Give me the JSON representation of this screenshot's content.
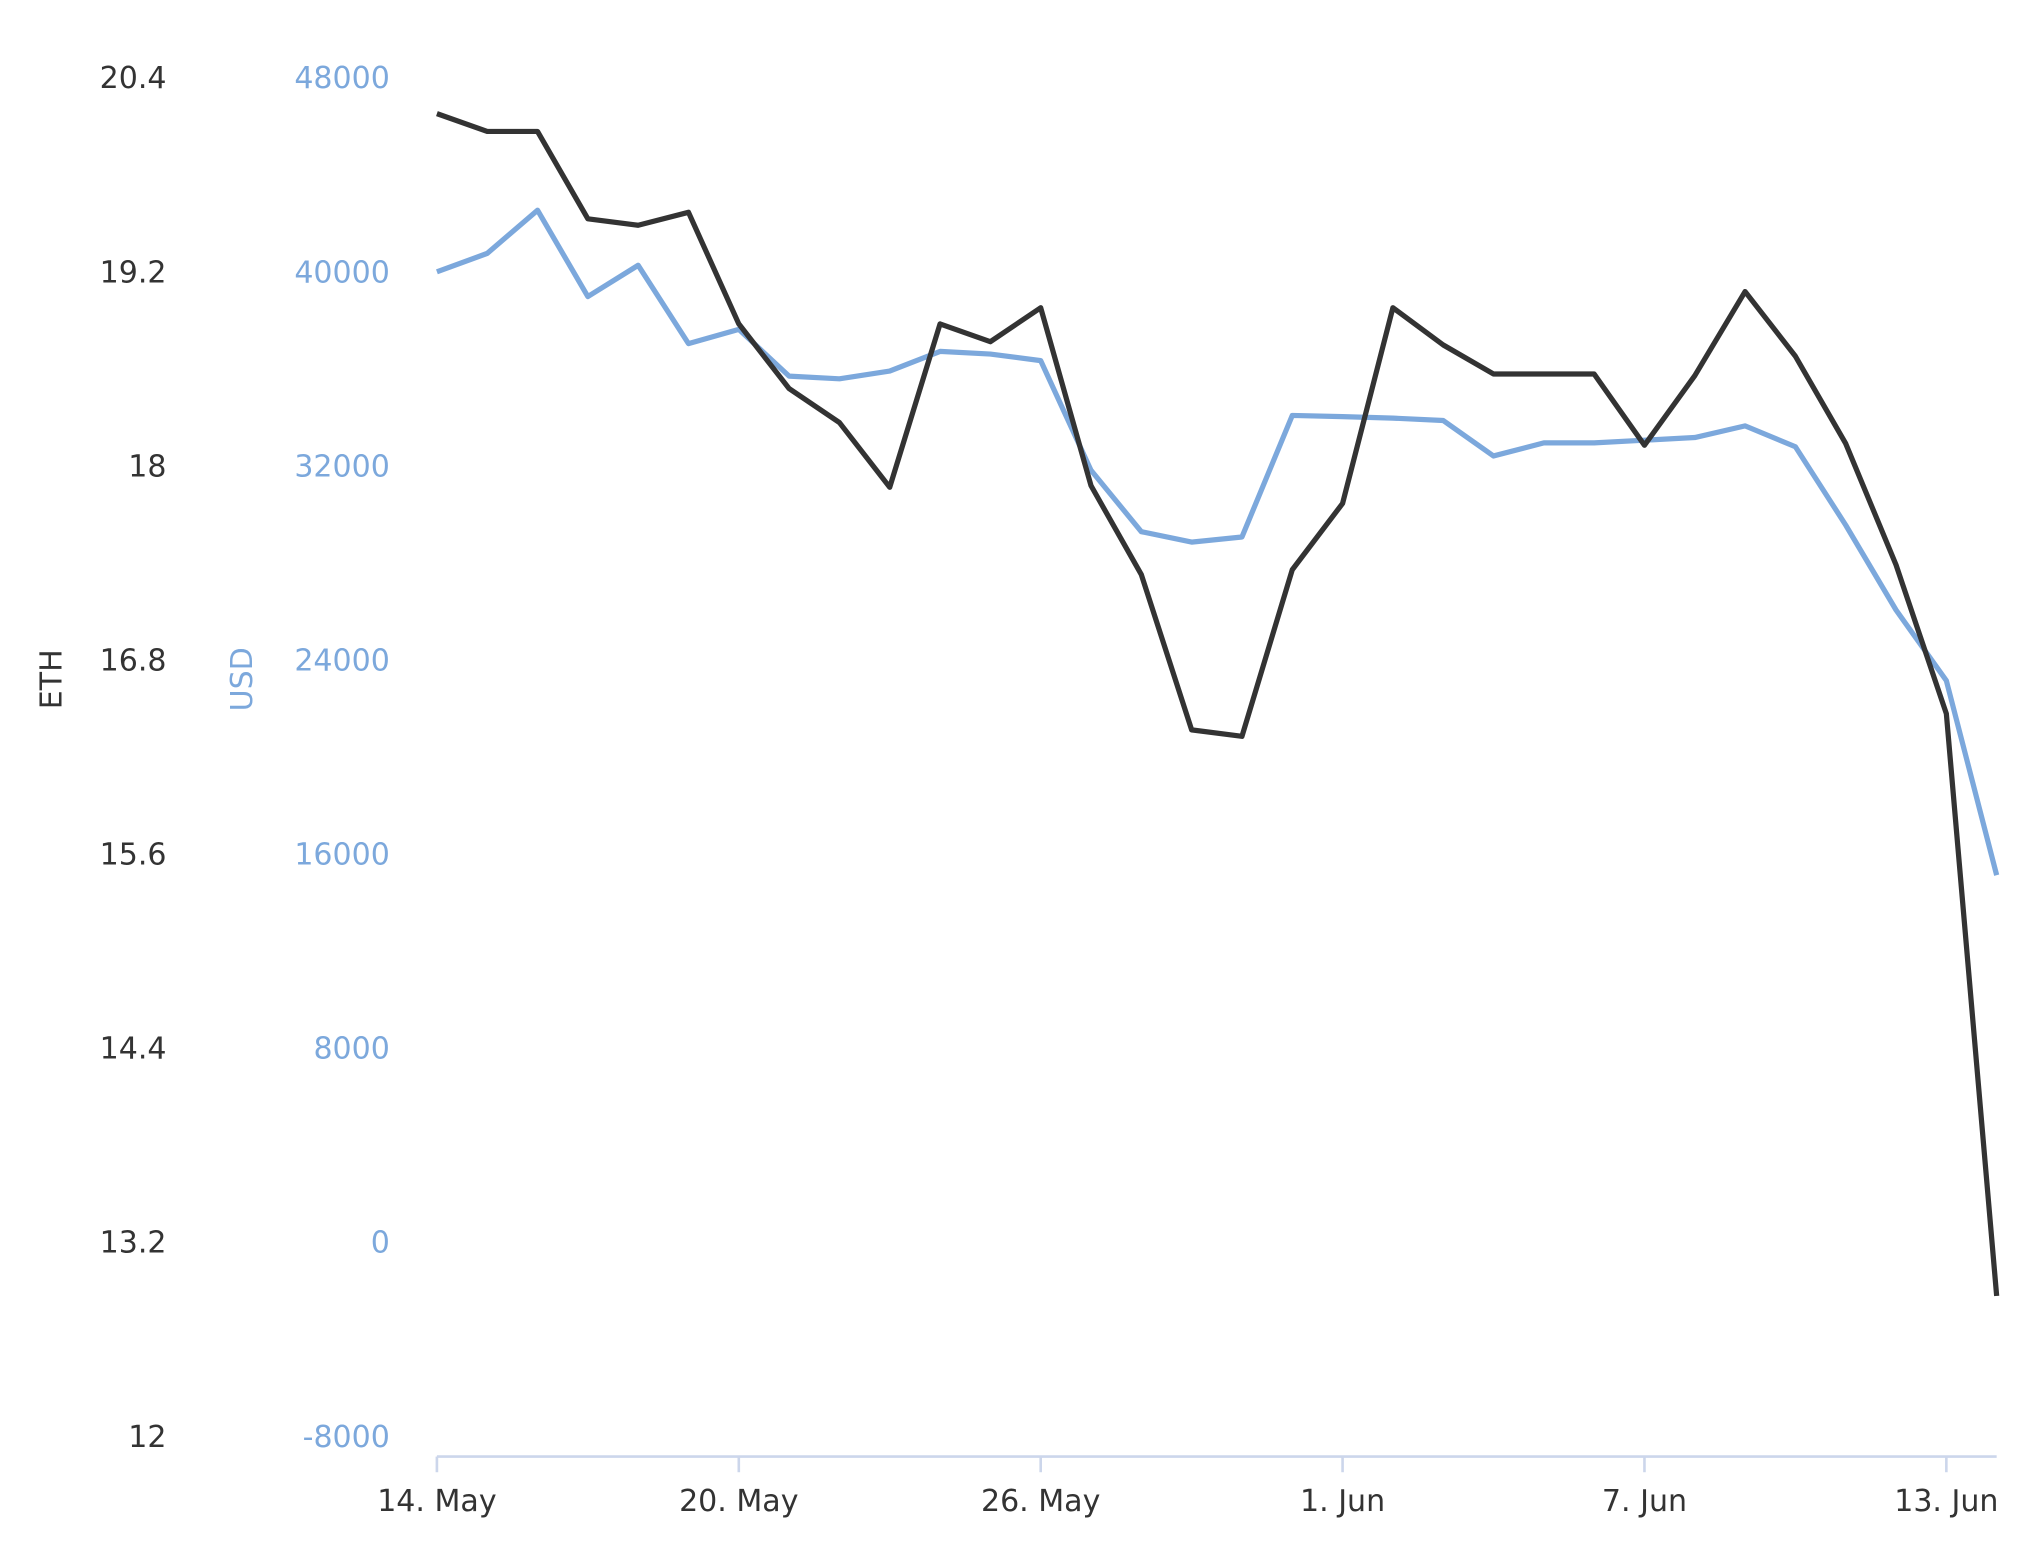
{
  "chart_data": {
    "type": "line",
    "categories": [
      "14. May",
      null,
      null,
      null,
      null,
      null,
      "20. May",
      null,
      null,
      null,
      null,
      null,
      "26. May",
      null,
      null,
      null,
      null,
      null,
      "1. Jun",
      null,
      null,
      null,
      null,
      null,
      "7. Jun",
      null,
      null,
      null,
      null,
      null,
      "13. Jun",
      null
    ],
    "y_label": "ETH",
    "y2_label": "USD",
    "ylim": [
      12,
      20.4
    ],
    "yticks": [
      12,
      13.2,
      14.4,
      15.6,
      16.8,
      18,
      19.2,
      20.4
    ],
    "y2lim": [
      -8000,
      48000
    ],
    "y2ticks": [
      -8000,
      0,
      8000,
      16000,
      24000,
      32000,
      40000,
      48000
    ],
    "y_color": "#333333",
    "y2_color": "#7ca8dc",
    "series": [
      {
        "name": "ETH",
        "color": "#333333",
        "axis": "y",
        "values": [
          20.19,
          20.08,
          20.08,
          19.54,
          19.5,
          19.58,
          18.89,
          18.49,
          18.28,
          17.88,
          18.89,
          18.78,
          18.99,
          17.89,
          17.34,
          16.38,
          16.34,
          17.37,
          17.78,
          18.99,
          18.76,
          18.58,
          18.58,
          18.58,
          18.14,
          18.57,
          19.09,
          18.69,
          18.15,
          17.4,
          16.48,
          12.88
        ]
      },
      {
        "name": "USD",
        "color": "#7ca8dc",
        "axis": "y2",
        "values": [
          40080,
          40840,
          42620,
          39060,
          40350,
          37120,
          37710,
          35780,
          35670,
          35990,
          36800,
          36690,
          36420,
          31900,
          29370,
          28940,
          29150,
          34160,
          34110,
          34050,
          33950,
          32490,
          33030,
          33030,
          33140,
          33250,
          33730,
          32870,
          29640,
          26140,
          23230,
          15210
        ]
      }
    ]
  }
}
